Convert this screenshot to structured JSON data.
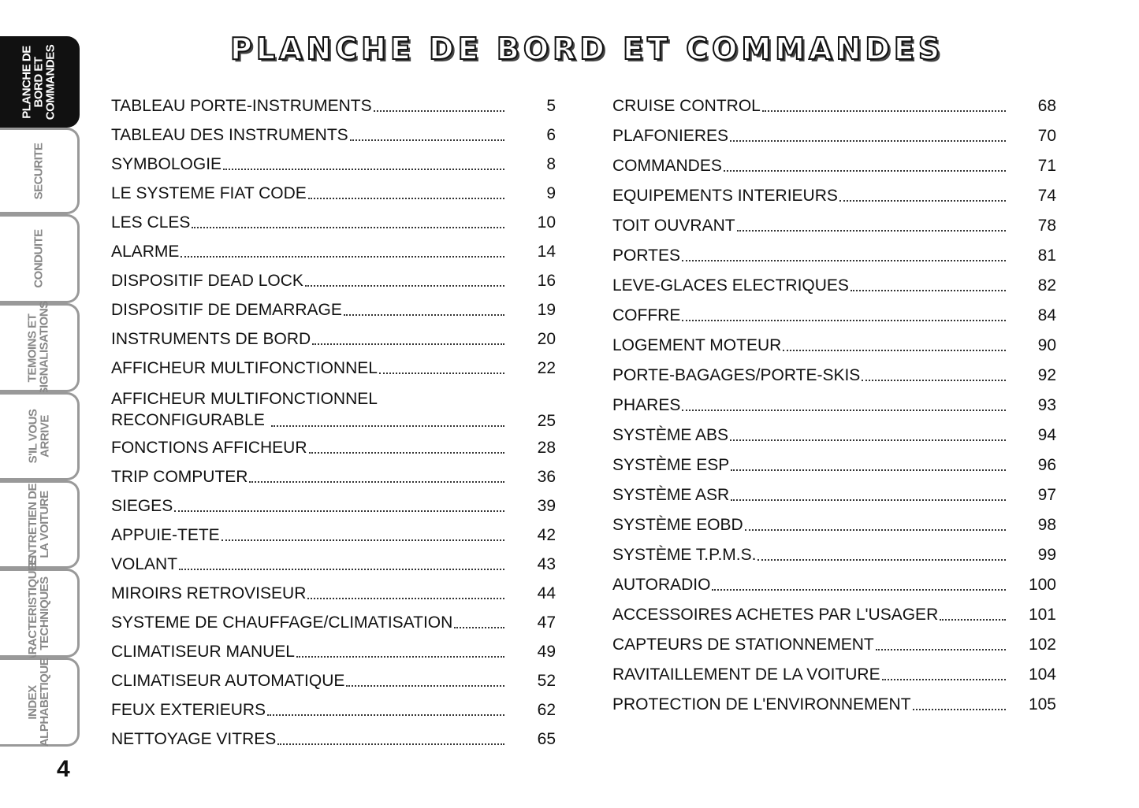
{
  "title": "PLANCHE DE BORD ET COMMANDES",
  "page_number": "4",
  "tabs": [
    {
      "label": "PLANCHE DE\nBORD ET\nCOMMANDES",
      "active": true
    },
    {
      "label": "SECURITE"
    },
    {
      "label": "CONDUITE"
    },
    {
      "label": "TEMOINS ET\nSIGNALISATIONS"
    },
    {
      "label": "S'IL VOUS\nARRIVE"
    },
    {
      "label": "ENTRETIEN DE\nLA VOITURE"
    },
    {
      "label": "CARACTERISTIQUES\nTECHNIQUES"
    },
    {
      "label": "INDEX\nALPHABETIQUE"
    }
  ],
  "left": [
    {
      "label": "TABLEAU PORTE-INSTRUMENTS",
      "page": "5"
    },
    {
      "label": "TABLEAU DES INSTRUMENTS",
      "page": "6"
    },
    {
      "label": "SYMBOLOGIE",
      "page": "8"
    },
    {
      "label": "LE SYSTEME FIAT CODE",
      "page": "9"
    },
    {
      "label": "LES CLES",
      "page": "10"
    },
    {
      "label": "ALARME",
      "page": "14"
    },
    {
      "label": "DISPOSITIF DEAD LOCK",
      "page": "16"
    },
    {
      "label": "DISPOSITIF DE DEMARRAGE",
      "page": "19"
    },
    {
      "label": "INSTRUMENTS DE BORD",
      "page": "20"
    },
    {
      "label": "AFFICHEUR MULTIFONCTIONNEL",
      "page": "22"
    },
    {
      "label": "AFFICHEUR MULTIFONCTIONNEL\nRECONFIGURABLE",
      "page": "25"
    },
    {
      "label": "FONCTIONS AFFICHEUR",
      "page": "28"
    },
    {
      "label": "TRIP COMPUTER",
      "page": "36"
    },
    {
      "label": "SIEGES",
      "page": "39"
    },
    {
      "label": "APPUIE-TETE",
      "page": "42"
    },
    {
      "label": "VOLANT",
      "page": "43"
    },
    {
      "label": "MIROIRS RETROVISEUR",
      "page": "44"
    },
    {
      "label": "SYSTEME DE CHAUFFAGE/CLIMATISATION",
      "page": "47"
    },
    {
      "label": "CLIMATISEUR MANUEL",
      "page": "49"
    },
    {
      "label": "CLIMATISEUR AUTOMATIQUE",
      "page": "52"
    },
    {
      "label": "FEUX EXTERIEURS",
      "page": "62"
    },
    {
      "label": "NETTOYAGE VITRES",
      "page": "65"
    }
  ],
  "right": [
    {
      "label": "CRUISE CONTROL",
      "page": "68"
    },
    {
      "label": "PLAFONIERES",
      "page": "70"
    },
    {
      "label": "COMMANDES",
      "page": "71"
    },
    {
      "label": "EQUIPEMENTS INTERIEURS",
      "page": "74"
    },
    {
      "label": "TOIT OUVRANT",
      "page": "78"
    },
    {
      "label": "PORTES",
      "page": "81"
    },
    {
      "label": "LEVE-GLACES ELECTRIQUES",
      "page": "82"
    },
    {
      "label": "COFFRE",
      "page": "84"
    },
    {
      "label": "LOGEMENT MOTEUR",
      "page": "90"
    },
    {
      "label": "PORTE-BAGAGES/PORTE-SKIS",
      "page": "92"
    },
    {
      "label": "PHARES",
      "page": "93"
    },
    {
      "label": "SYSTÈME ABS",
      "page": "94"
    },
    {
      "label": "SYSTÈME ESP",
      "page": "96"
    },
    {
      "label": "SYSTÈME ASR",
      "page": "97"
    },
    {
      "label": "SYSTÈME EOBD",
      "page": "98"
    },
    {
      "label": "SYSTÈME T.P.M.S.",
      "page": "99"
    },
    {
      "label": "AUTORADIO",
      "page": "100"
    },
    {
      "label": "ACCESSOIRES ACHETES PAR L'USAGER",
      "page": "101"
    },
    {
      "label": "CAPTEURS DE STATIONNEMENT",
      "page": "102"
    },
    {
      "label": "RAVITAILLEMENT DE LA VOITURE",
      "page": "104"
    },
    {
      "label": "PROTECTION DE L'ENVIRONNEMENT",
      "page": "105"
    }
  ]
}
